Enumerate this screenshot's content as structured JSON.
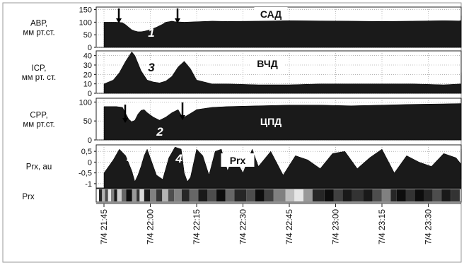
{
  "chart_data": {
    "type": "area",
    "panels": [
      {
        "id": "abp",
        "label": [
          "АВР,",
          "мм рт.ст."
        ],
        "title": "САД",
        "yticks": [
          0,
          50,
          100,
          150
        ],
        "ylim": [
          0,
          160
        ],
        "x": [
          0,
          4,
          6,
          7,
          8,
          9,
          10,
          11,
          12,
          13,
          15,
          17,
          19,
          20,
          21,
          22,
          23,
          26,
          30,
          35,
          40,
          50,
          60,
          70,
          80,
          90,
          100,
          110,
          115,
          120,
          125,
          130,
          135,
          140,
          150,
          155,
          160,
          165,
          170,
          175,
          180,
          185,
          190,
          195,
          200,
          205,
          210,
          215,
          220,
          225,
          230,
          235,
          240
        ],
        "y": [
          100,
          100,
          98,
          90,
          80,
          70,
          65,
          62,
          62,
          64,
          70,
          80,
          92,
          100,
          102,
          104,
          102,
          100,
          102,
          104,
          103,
          104,
          106,
          105,
          104,
          103,
          104,
          106,
          105,
          107,
          108,
          110,
          111,
          110,
          114,
          117,
          118,
          118,
          116,
          120,
          124,
          122,
          118,
          125,
          126,
          120,
          118,
          114,
          112,
          112,
          112,
          112,
          112
        ]
      },
      {
        "id": "icp",
        "label": [
          "ICP,",
          "мм рт. ст."
        ],
        "title": "ВЧД",
        "yticks": [
          0,
          10,
          20,
          30,
          40
        ],
        "ylim": [
          0,
          45
        ],
        "x": [
          0,
          3,
          5,
          7,
          9,
          10,
          12,
          14,
          16,
          18,
          20,
          22,
          24,
          26,
          28,
          30,
          35,
          40,
          50,
          60,
          70,
          80,
          90,
          100,
          110,
          120,
          130,
          135,
          140,
          145,
          150,
          155,
          160,
          170,
          180,
          190,
          200,
          210,
          220,
          230,
          240
        ],
        "y": [
          10,
          14,
          22,
          34,
          44,
          40,
          24,
          14,
          12,
          11,
          13,
          18,
          28,
          34,
          26,
          14,
          10,
          10,
          9,
          9,
          10,
          10,
          10,
          10,
          9,
          10,
          11,
          12,
          16,
          22,
          18,
          12,
          10,
          14,
          19,
          13,
          11,
          14,
          16,
          13,
          11
        ]
      },
      {
        "id": "cpp",
        "label": [
          "CPP,",
          "мм рт.ст."
        ],
        "title": "ЦПД",
        "yticks": [
          0,
          50,
          100
        ],
        "ylim": [
          0,
          110
        ],
        "x": [
          0,
          4,
          6,
          7,
          8,
          9,
          10,
          11,
          12,
          13,
          14,
          16,
          18,
          20,
          22,
          24,
          25,
          26,
          28,
          30,
          35,
          40,
          50,
          60,
          70,
          80,
          90,
          100,
          110,
          120,
          130,
          140,
          150,
          155,
          160,
          170,
          175,
          180,
          185,
          190,
          200,
          210,
          220,
          230,
          240
        ],
        "y": [
          88,
          88,
          86,
          70,
          55,
          48,
          52,
          68,
          78,
          80,
          72,
          60,
          52,
          60,
          72,
          80,
          66,
          60,
          70,
          80,
          86,
          88,
          90,
          92,
          92,
          90,
          92,
          94,
          95,
          96,
          96,
          98,
          100,
          104,
          98,
          100,
          110,
          108,
          104,
          110,
          100,
          96,
          92,
          94,
          92
        ]
      },
      {
        "id": "prx",
        "label": [
          "Prx, au"
        ],
        "title": "Prx",
        "yticks": [
          0.5,
          0,
          -0.5,
          -1
        ],
        "yticklabels": [
          "0,5",
          "0",
          "-0,5",
          "-1"
        ],
        "ylim": [
          -1.2,
          0.8
        ],
        "x": [
          0,
          3,
          5,
          7,
          9,
          10,
          11,
          12,
          13,
          14,
          15,
          17,
          19,
          21,
          23,
          25,
          26,
          27,
          28,
          30,
          32,
          34,
          36,
          38,
          40,
          42,
          45,
          48,
          50,
          54,
          58,
          62,
          66,
          70,
          74,
          78,
          82,
          86,
          90,
          94,
          98,
          102,
          106,
          110,
          114,
          118,
          122,
          126,
          130,
          134,
          138,
          142,
          146,
          150,
          154,
          158,
          162,
          166,
          170,
          174,
          178,
          182,
          186,
          190,
          194,
          198,
          202,
          206,
          210,
          214,
          218,
          222,
          226,
          230,
          234,
          240
        ],
        "y": [
          -0.5,
          0.1,
          0.6,
          0.3,
          -0.4,
          -0.9,
          -0.6,
          -0.2,
          0.3,
          0.6,
          0.2,
          -0.6,
          -0.8,
          0.2,
          0.7,
          0.6,
          -0.5,
          -0.9,
          -0.7,
          0.6,
          0.3,
          -0.6,
          0.5,
          0.6,
          -0.4,
          0.3,
          -0.5,
          0.6,
          -0.2,
          0.5,
          -0.6,
          0.3,
          0.1,
          -0.3,
          0.4,
          0.5,
          -0.3,
          0.2,
          0.6,
          -0.5,
          0.3,
          0.0,
          -0.2,
          0.4,
          0.2,
          -0.1,
          0.5,
          -0.7,
          0.2,
          -0.5,
          0.6,
          0.1,
          -0.6,
          -0.4,
          0.1,
          -0.8,
          0.3,
          -0.2,
          -0.8,
          0.1,
          0.5,
          -0.7,
          0.4,
          -0.3,
          0.0,
          -0.7,
          0.4,
          -0.1,
          -0.5,
          -0.8,
          0.3,
          -0.5,
          0.5,
          0.1,
          0.3,
          0.0
        ]
      }
    ],
    "strip": {
      "label": "Prx",
      "bands": [
        [
          0,
          2,
          0.85
        ],
        [
          2,
          4,
          0.3
        ],
        [
          4,
          6,
          0.7
        ],
        [
          6,
          8,
          0.1
        ],
        [
          8,
          10,
          0.5
        ],
        [
          10,
          12,
          0.9
        ],
        [
          12,
          15,
          0.2
        ],
        [
          15,
          18,
          0.6
        ],
        [
          18,
          22,
          0.95
        ],
        [
          22,
          25,
          0.4
        ],
        [
          25,
          27,
          0.8
        ],
        [
          27,
          30,
          0.15
        ],
        [
          30,
          34,
          0.9
        ],
        [
          34,
          38,
          0.5
        ],
        [
          38,
          42,
          0.8
        ],
        [
          42,
          46,
          0.3
        ],
        [
          46,
          50,
          0.7
        ],
        [
          50,
          55,
          0.5
        ],
        [
          55,
          60,
          0.85
        ],
        [
          60,
          66,
          0.6
        ],
        [
          66,
          72,
          0.9
        ],
        [
          72,
          78,
          0.7
        ],
        [
          78,
          84,
          0.95
        ],
        [
          84,
          90,
          0.6
        ],
        [
          90,
          98,
          0.85
        ],
        [
          98,
          104,
          0.7
        ],
        [
          104,
          110,
          0.95
        ],
        [
          110,
          116,
          0.75
        ],
        [
          116,
          124,
          0.5
        ],
        [
          124,
          130,
          0.25
        ],
        [
          130,
          136,
          0.1
        ],
        [
          136,
          142,
          0.4
        ],
        [
          142,
          150,
          0.85
        ],
        [
          150,
          156,
          0.95
        ],
        [
          156,
          162,
          0.75
        ],
        [
          162,
          168,
          0.9
        ],
        [
          168,
          176,
          0.8
        ],
        [
          176,
          182,
          0.9
        ],
        [
          182,
          188,
          0.7
        ],
        [
          188,
          194,
          0.5
        ],
        [
          194,
          198,
          0.85
        ],
        [
          198,
          204,
          0.95
        ],
        [
          204,
          210,
          0.8
        ],
        [
          210,
          216,
          0.95
        ],
        [
          216,
          222,
          0.85
        ],
        [
          222,
          228,
          0.7
        ],
        [
          228,
          234,
          0.9
        ],
        [
          234,
          240,
          0.8
        ]
      ]
    },
    "x_axis": {
      "unit": "minutes from 7/4 21:45",
      "xlim": [
        0,
        240
      ],
      "ticks": [
        {
          "x": 0,
          "label": "7/4 21:45"
        },
        {
          "x": 15,
          "label": "7/4 22:00"
        },
        {
          "x": 30,
          "label": "7/4 22:15"
        },
        {
          "x": 45,
          "label": "7/4 22:30"
        },
        {
          "x": 60,
          "label": "7/4 22:45"
        },
        {
          "x": 75,
          "label": "7/4 23:00"
        },
        {
          "x": 90,
          "label": "7/4 23:15"
        },
        {
          "x": 105,
          "label": "7/4 23:30"
        }
      ]
    },
    "annotations": [
      {
        "panel": "abp",
        "text": "1"
      },
      {
        "panel": "icp",
        "text": "3"
      },
      {
        "panel": "cpp",
        "text": "2"
      },
      {
        "panel": "prx",
        "text": "4"
      },
      {
        "panel": "prx",
        "text": "4"
      }
    ]
  }
}
